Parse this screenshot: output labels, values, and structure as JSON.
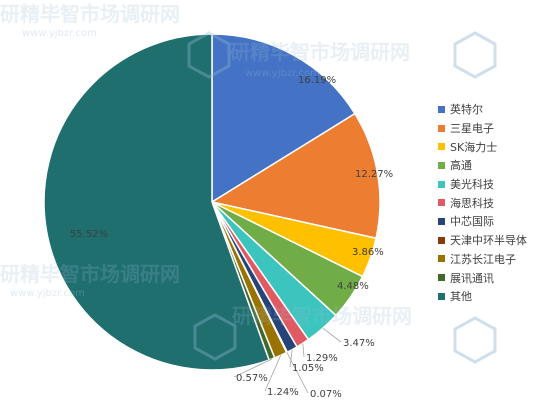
{
  "chart_data": {
    "type": "pie",
    "categories": [
      "英特尔",
      "三星电子",
      "SK海力士",
      "高通",
      "美光科技",
      "海思科技",
      "中芯国际",
      "天津中环半导体",
      "江苏长江电子",
      "展讯通讯",
      "其他"
    ],
    "values": [
      16.19,
      12.27,
      3.86,
      4.48,
      3.47,
      1.29,
      1.05,
      0.07,
      1.24,
      0.57,
      55.52
    ],
    "data_labels": [
      "16.19%",
      "12.27%",
      "3.86%",
      "4.48%",
      "3.47%",
      "1.29%",
      "1.05%",
      "0.07%",
      "1.24%",
      "0.57%",
      "55.52%"
    ],
    "colors": [
      "#4472C4",
      "#ED7D31",
      "#FFC000",
      "#70AD47",
      "#3CC5BE",
      "#E05A63",
      "#264478",
      "#843C0C",
      "#997300",
      "#43682B",
      "#1F6F6F"
    ],
    "start_angle": "12 o'clock",
    "direction": "clockwise",
    "legend_position": "right"
  },
  "watermark": {
    "brand": "研精毕智市场调研网",
    "url": "www.yjbzr.com"
  }
}
